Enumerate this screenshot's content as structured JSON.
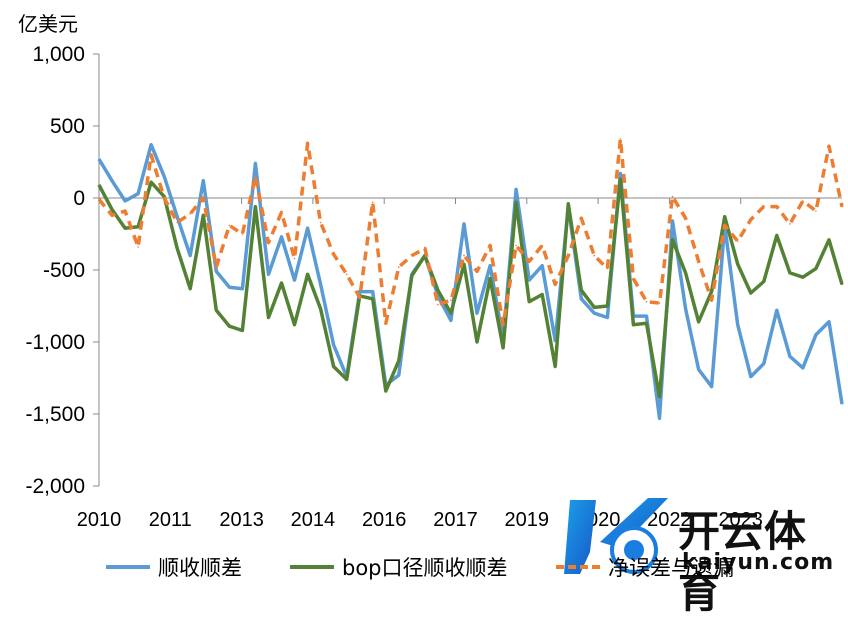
{
  "unit_label": "亿美元",
  "legend": [
    {
      "label": "顺收顺差",
      "color": "#5B9BD5",
      "dash": false
    },
    {
      "label": "bop口径顺收顺差",
      "color": "#548235",
      "dash": false
    },
    {
      "label": "净误差与遗漏",
      "color": "#ED7D31",
      "dash": true
    }
  ],
  "watermark": {
    "text": "开云体育",
    "url": "kaiyun.com"
  },
  "chart_data": {
    "type": "line",
    "ylabel": "亿美元",
    "ylim": [
      -2000,
      1000
    ],
    "y_ticks": [
      1000,
      500,
      0,
      -500,
      -1000,
      -1500,
      -2000
    ],
    "y_tick_labels": [
      "1,000",
      "500",
      "0",
      "-500",
      "-1,000",
      "-1,500",
      "-2,000"
    ],
    "x_tick_labels": [
      "2010",
      "2011",
      "2013",
      "2014",
      "2016",
      "2017",
      "2019",
      "2020",
      "2022",
      "2023"
    ],
    "series": [
      {
        "name": "顺收顺差",
        "color": "#5B9BD5",
        "values": [
          270,
          120,
          -20,
          30,
          370,
          150,
          -130,
          -400,
          120,
          -510,
          -620,
          -630,
          240,
          -530,
          -270,
          -570,
          -210,
          -600,
          -1020,
          -1240,
          -650,
          -650,
          -1300,
          -1230,
          -530,
          -400,
          -680,
          -850,
          -180,
          -800,
          -470,
          -980,
          60,
          -570,
          -470,
          -990,
          -60,
          -700,
          -800,
          -830,
          170,
          -820,
          -820,
          -1530,
          -160,
          -770,
          -1190,
          -1310,
          -190,
          -880,
          -1240,
          -1150,
          -780,
          -1100,
          -1180,
          -950,
          -860,
          -1430
        ]
      },
      {
        "name": "bop口径顺收顺差",
        "color": "#548235",
        "values": [
          90,
          -80,
          -210,
          -200,
          110,
          10,
          -350,
          -630,
          -120,
          -780,
          -890,
          -920,
          -60,
          -830,
          -590,
          -880,
          -530,
          -770,
          -1170,
          -1260,
          -680,
          -700,
          -1340,
          -1130,
          -540,
          -400,
          -640,
          -800,
          -460,
          -1000,
          -560,
          -1040,
          -30,
          -720,
          -670,
          -1170,
          -40,
          -640,
          -760,
          -750,
          130,
          -880,
          -870,
          -1380,
          -290,
          -520,
          -860,
          -650,
          -130,
          -460,
          -660,
          -580,
          -260,
          -520,
          -550,
          -490,
          -290,
          -600
        ]
      },
      {
        "name": "净误差与遗漏",
        "color": "#ED7D31",
        "values": [
          -10,
          -120,
          -90,
          -340,
          300,
          0,
          -170,
          -110,
          0,
          -480,
          -190,
          -250,
          150,
          -310,
          -100,
          -420,
          380,
          -170,
          -390,
          -530,
          -690,
          -30,
          -870,
          -480,
          -400,
          -350,
          -740,
          -710,
          -400,
          -510,
          -330,
          -880,
          -330,
          -440,
          -330,
          -600,
          -400,
          -140,
          -400,
          -490,
          410,
          -560,
          -720,
          -730,
          10,
          -140,
          -440,
          -710,
          -190,
          -300,
          -150,
          -60,
          -60,
          -180,
          -20,
          -90,
          360,
          -60
        ]
      }
    ]
  }
}
